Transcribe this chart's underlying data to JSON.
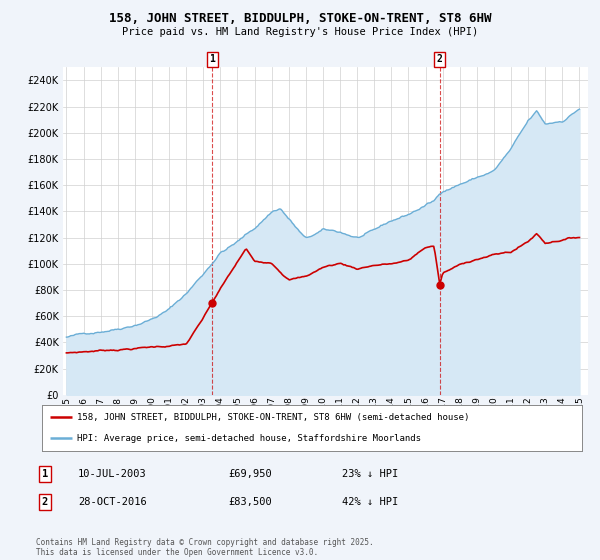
{
  "title": "158, JOHN STREET, BIDDULPH, STOKE-ON-TRENT, ST8 6HW",
  "subtitle": "Price paid vs. HM Land Registry's House Price Index (HPI)",
  "ylim": [
    0,
    250000
  ],
  "yticks": [
    0,
    20000,
    40000,
    60000,
    80000,
    100000,
    120000,
    140000,
    160000,
    180000,
    200000,
    220000,
    240000
  ],
  "hpi_color": "#6baed6",
  "hpi_fill_color": "#d6e8f5",
  "price_color": "#cc0000",
  "chart_bg": "#ffffff",
  "fig_bg": "#f0f4fa",
  "grid_color": "#d0d0d0",
  "marker1_label": "1",
  "marker2_label": "2",
  "legend_line1": "158, JOHN STREET, BIDDULPH, STOKE-ON-TRENT, ST8 6HW (semi-detached house)",
  "legend_line2": "HPI: Average price, semi-detached house, Staffordshire Moorlands",
  "transaction1_num": "1",
  "transaction1_date": "10-JUL-2003",
  "transaction1_price": "£69,950",
  "transaction1_hpi": "23% ↓ HPI",
  "transaction1_year": 2003.53,
  "transaction1_price_val": 69950,
  "transaction2_num": "2",
  "transaction2_date": "28-OCT-2016",
  "transaction2_price": "£83,500",
  "transaction2_hpi": "42% ↓ HPI",
  "transaction2_year": 2016.83,
  "transaction2_price_val": 83500,
  "footer": "Contains HM Land Registry data © Crown copyright and database right 2025.\nThis data is licensed under the Open Government Licence v3.0."
}
